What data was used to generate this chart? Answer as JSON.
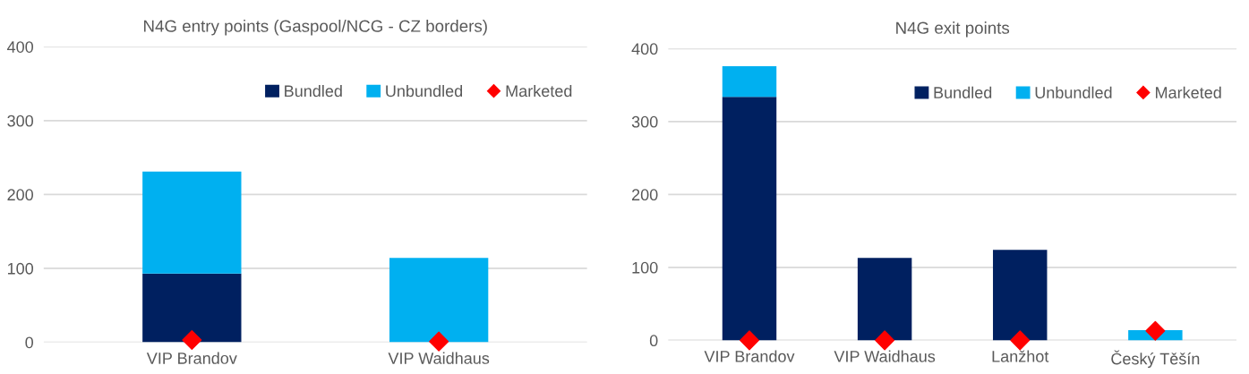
{
  "chart_data": [
    {
      "type": "bar",
      "title": "N4G entry points (Gaspool/NCG - CZ borders)",
      "categories": [
        "VIP Brandov",
        "VIP Waidhaus"
      ],
      "stacked": true,
      "series": [
        {
          "name": "Bundled",
          "color": "#002060",
          "values": [
            93,
            0
          ]
        },
        {
          "name": "Unbundled",
          "color": "#00b0f0",
          "values": [
            138,
            114
          ]
        },
        {
          "name": "Marketed",
          "color": "#ff0000",
          "type": "scatter",
          "marker": "diamond",
          "x": [
            "VIP Brandov",
            "VIP Waidhaus"
          ],
          "values": [
            3,
            1
          ]
        }
      ],
      "ylim": [
        0,
        400
      ],
      "yticks": [
        0,
        100,
        200,
        300,
        400
      ],
      "grid": "y",
      "legend": "top right"
    },
    {
      "type": "bar",
      "title": "N4G exit points",
      "categories": [
        "VIP Brandov",
        "VIP Waidhaus",
        "Lanžhot",
        "Český Těšín"
      ],
      "stacked": true,
      "series": [
        {
          "name": "Bundled",
          "color": "#002060",
          "values": [
            334,
            113,
            124,
            0
          ]
        },
        {
          "name": "Unbundled",
          "color": "#00b0f0",
          "values": [
            42,
            0,
            0,
            14
          ]
        },
        {
          "name": "Marketed",
          "color": "#ff0000",
          "type": "scatter",
          "marker": "diamond",
          "x": [
            "VIP Brandov",
            "VIP Waidhaus",
            "Lanžhot",
            "Český Těšín"
          ],
          "values": [
            0,
            0,
            0,
            13
          ]
        }
      ],
      "ylim": [
        0,
        400
      ],
      "yticks": [
        0,
        100,
        200,
        300,
        400
      ],
      "grid": "y",
      "legend": "top right"
    }
  ]
}
